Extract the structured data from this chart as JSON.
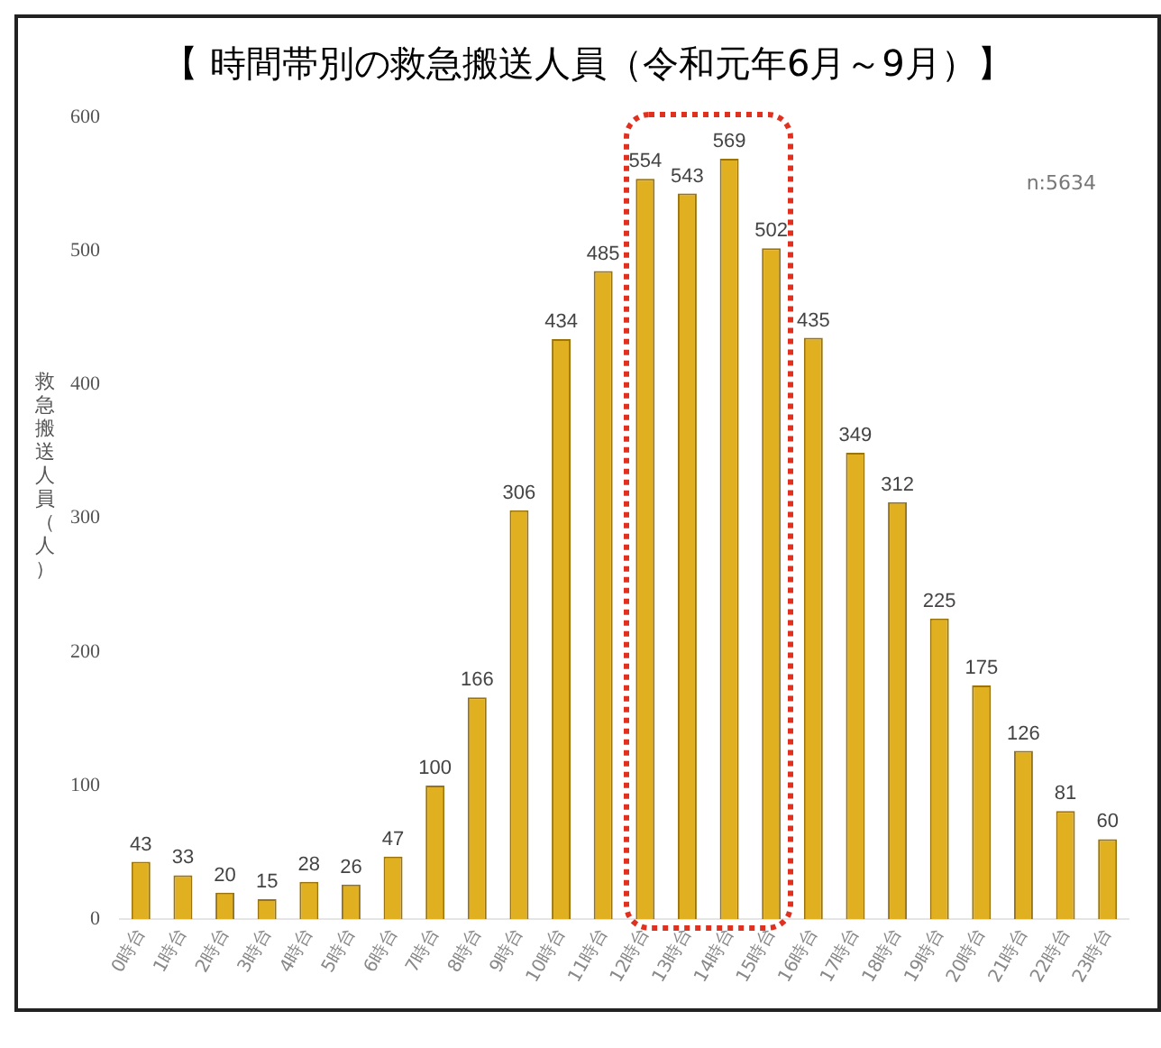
{
  "chart_data": {
    "type": "bar",
    "title": "【 時間帯別の救急搬送人員（令和元年6月～9月）】",
    "ylabel": "救急搬送人員（人）",
    "categories": [
      "0時台",
      "1時台",
      "2時台",
      "3時台",
      "4時台",
      "5時台",
      "6時台",
      "7時台",
      "8時台",
      "9時台",
      "10時台",
      "11時台",
      "12時台",
      "13時台",
      "14時台",
      "15時台",
      "16時台",
      "17時台",
      "18時台",
      "19時台",
      "20時台",
      "21時台",
      "22時台",
      "23時台"
    ],
    "values": [
      43,
      33,
      20,
      15,
      28,
      26,
      47,
      100,
      166,
      306,
      434,
      485,
      554,
      543,
      569,
      502,
      435,
      349,
      312,
      225,
      175,
      126,
      81,
      60
    ],
    "color": "#e0b020",
    "ylim": [
      0,
      600
    ],
    "yticks": [
      0,
      100,
      200,
      300,
      400,
      500,
      600
    ],
    "grid": false,
    "data_labels": true,
    "legend": false,
    "annotations": [
      "n:5634"
    ]
  }
}
